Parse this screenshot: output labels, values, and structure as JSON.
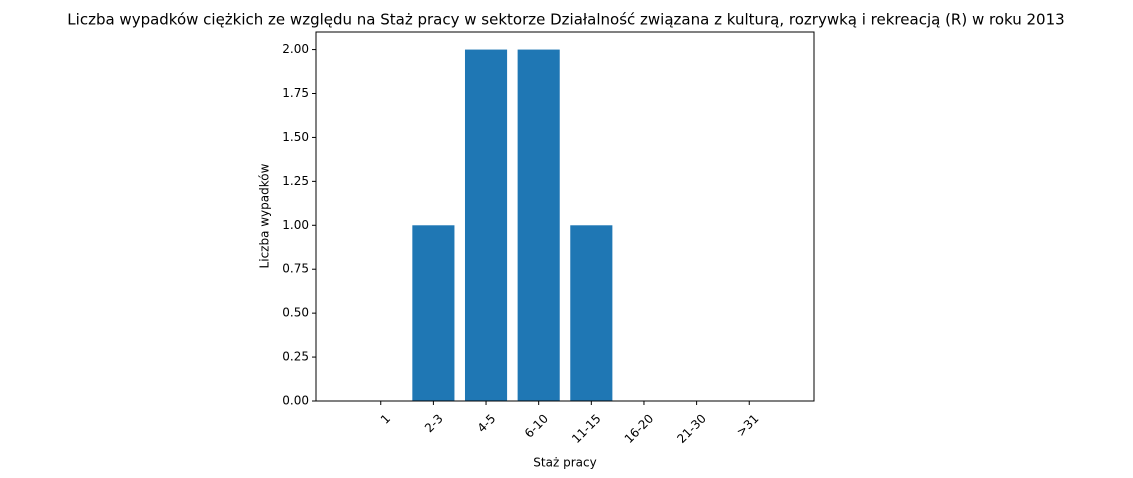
{
  "chart_data": {
    "type": "bar",
    "title": "Liczba wypadków ciężkich ze względu na Staż pracy w sektorze Działalność związana z kulturą, rozrywką i rekreacją (R) w roku 2013",
    "xlabel": "Staż pracy",
    "ylabel": "Liczba wypadków",
    "categories": [
      "1",
      "2-3",
      "4-5",
      "6-10",
      "11-15",
      "16-20",
      "21-30",
      ">31"
    ],
    "values": [
      0,
      1,
      2,
      2,
      1,
      0,
      0,
      0
    ],
    "ylim": [
      0,
      2.1
    ],
    "yticks": [
      "0.00",
      "0.25",
      "0.50",
      "0.75",
      "1.00",
      "1.25",
      "1.50",
      "1.75",
      "2.00"
    ],
    "bar_color": "#1f77b4",
    "grid": false,
    "legend": false
  }
}
